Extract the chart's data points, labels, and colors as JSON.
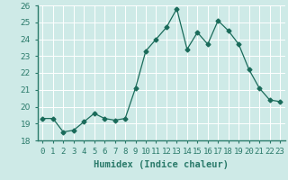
{
  "x": [
    0,
    1,
    2,
    3,
    4,
    5,
    6,
    7,
    8,
    9,
    10,
    11,
    12,
    13,
    14,
    15,
    16,
    17,
    18,
    19,
    20,
    21,
    22,
    23
  ],
  "y": [
    19.3,
    19.3,
    18.5,
    18.6,
    19.1,
    19.6,
    19.3,
    19.2,
    19.3,
    21.1,
    23.3,
    24.0,
    24.7,
    25.8,
    23.4,
    24.4,
    23.7,
    25.1,
    24.5,
    23.7,
    22.2,
    21.1,
    20.4,
    20.3
  ],
  "xlabel": "Humidex (Indice chaleur)",
  "ylim": [
    18,
    26
  ],
  "xlim": [
    -0.5,
    23.5
  ],
  "yticks": [
    18,
    19,
    20,
    21,
    22,
    23,
    24,
    25,
    26
  ],
  "xtick_labels": [
    "0",
    "1",
    "2",
    "3",
    "4",
    "5",
    "6",
    "7",
    "8",
    "9",
    "10",
    "11",
    "12",
    "13",
    "14",
    "15",
    "16",
    "17",
    "18",
    "19",
    "20",
    "21",
    "22",
    "23"
  ],
  "line_color": "#1a6b5a",
  "marker": "D",
  "marker_size": 2.5,
  "bg_color": "#ceeae7",
  "grid_color": "#ffffff",
  "label_fontsize": 7.5,
  "tick_fontsize": 6.5,
  "axis_color": "#2a7a6a"
}
